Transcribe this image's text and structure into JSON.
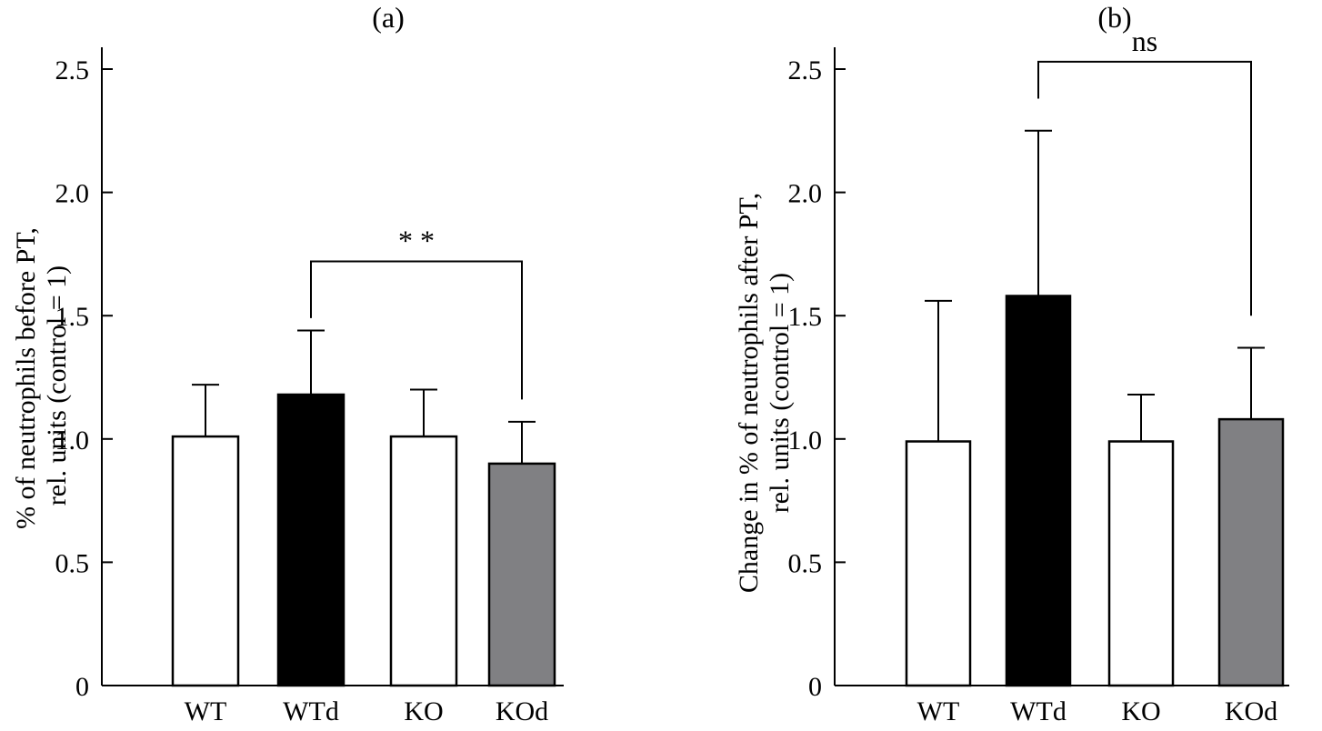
{
  "chart_data": [
    {
      "type": "bar",
      "panel_label": "(a)",
      "title": "(a)",
      "xlabel": "",
      "ylabel": "% of neutrophils before PT,",
      "ylabel_line2": "rel. units (control = 1)",
      "categories": [
        "WT",
        "WTd",
        "KO",
        "KOd"
      ],
      "values": [
        1.01,
        1.18,
        1.01,
        0.9
      ],
      "error_upper": [
        1.22,
        1.44,
        1.2,
        1.07
      ],
      "bar_colors": [
        "#ffffff",
        "#000000",
        "#ffffff",
        "#808083"
      ],
      "ylim": [
        0,
        2.6
      ],
      "yticks": [
        0,
        0.5,
        1.0,
        1.5,
        2.0,
        2.5
      ],
      "ytick_labels": [
        "0",
        "0.5",
        "1.0",
        "1.5",
        "2.0",
        "2.5"
      ],
      "grid": false,
      "significance": {
        "label": "* *",
        "from": "WTd",
        "to": "KOd",
        "bracket_y": 1.72,
        "left_end": 1.49,
        "right_end": 1.16
      }
    },
    {
      "type": "bar",
      "panel_label": "(b)",
      "title": "(b)",
      "xlabel": "",
      "ylabel": "Change in % of neutrophils after PT,",
      "ylabel_line2": "rel. units (control = 1)",
      "categories": [
        "WT",
        "WTd",
        "KO",
        "KOd"
      ],
      "values": [
        0.99,
        1.58,
        0.99,
        1.08
      ],
      "error_upper": [
        1.56,
        2.25,
        1.18,
        1.37
      ],
      "bar_colors": [
        "#ffffff",
        "#000000",
        "#ffffff",
        "#808083"
      ],
      "ylim": [
        0,
        2.6
      ],
      "yticks": [
        0,
        0.5,
        1.0,
        1.5,
        2.0,
        2.5
      ],
      "ytick_labels": [
        "0",
        "0.5",
        "1.0",
        "1.5",
        "2.0",
        "2.5"
      ],
      "grid": false,
      "significance": {
        "label": "ns",
        "from": "WTd",
        "to": "KOd",
        "bracket_y": 2.53,
        "left_end": 2.38,
        "right_end": 1.5
      }
    }
  ]
}
